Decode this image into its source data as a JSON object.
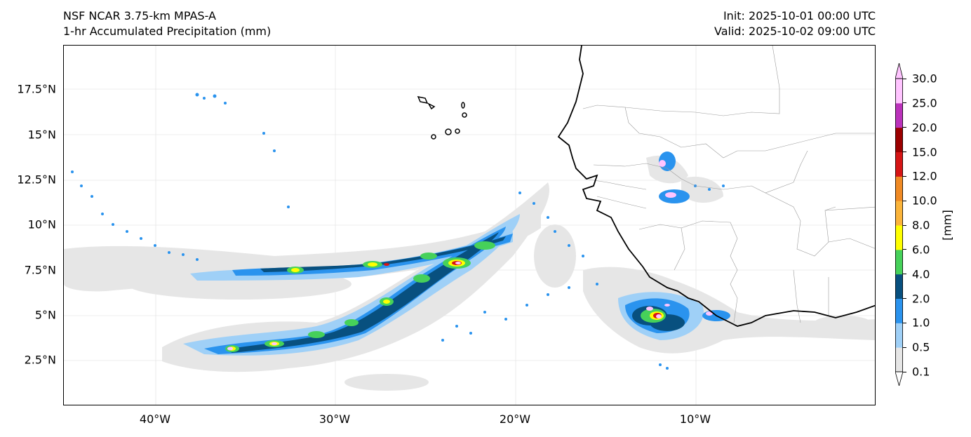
{
  "header": {
    "model": "NSF NCAR 3.75-km MPAS-A",
    "field": "1-hr Accumulated Precipitation (mm)",
    "init": "Init: 2025-10-01 00:00 UTC",
    "valid": "Valid: 2025-10-02 09:00 UTC"
  },
  "axes": {
    "lat_ticks": [
      "17.5°N",
      "15°N",
      "12.5°N",
      "10°N",
      "7.5°N",
      "5°N",
      "2.5°N"
    ],
    "lon_ticks": [
      "40°W",
      "30°W",
      "20°W",
      "10°W"
    ]
  },
  "colorbar": {
    "unit_label": "[mm]",
    "levels": [
      "0.1",
      "0.5",
      "1.0",
      "2.0",
      "4.0",
      "6.0",
      "8.0",
      "10.0",
      "12.0",
      "15.0",
      "20.0",
      "25.0",
      "30.0"
    ],
    "colors": [
      "#e6e6e6",
      "#9fd0f7",
      "#2a93ee",
      "#08507f",
      "#46d15a",
      "#ffff00",
      "#fbb43a",
      "#f08a24",
      "#d61515",
      "#9c0000",
      "#bb32bb",
      "#ffc4ff"
    ]
  },
  "map": {
    "features": [
      "west-africa-coastline",
      "country-borders",
      "cape-verde-islands",
      "itcz-rain-band"
    ]
  }
}
